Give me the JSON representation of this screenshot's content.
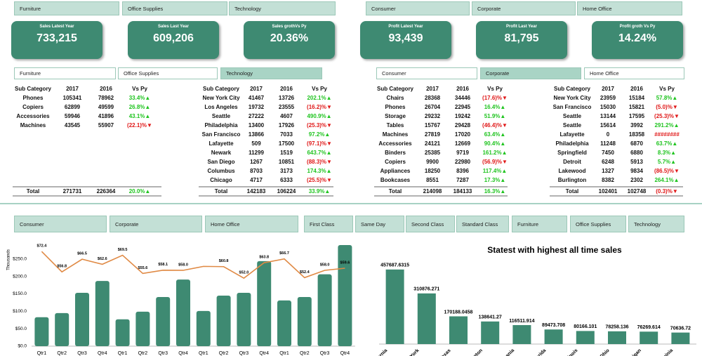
{
  "slicers_top": {
    "category": [
      "Furniture",
      "Office Supplies",
      "Technology"
    ],
    "segment": [
      "Consumer",
      "Corporate",
      "Home Office"
    ]
  },
  "kpis": [
    {
      "title": "Sales Latest Year",
      "value": "733,215"
    },
    {
      "title": "Sales Last Year",
      "value": "609,206"
    },
    {
      "title": "Sales grothVs Py",
      "value": "20.36%"
    },
    {
      "title": "Profit Latest Year",
      "value": "93,439"
    },
    {
      "title": "Profit Last Year",
      "value": "81,795"
    },
    {
      "title": "Profit groth Vs Py",
      "value": "14.24%"
    }
  ],
  "slicers_mid": {
    "category": [
      "Furniture",
      "Office Supplies",
      "Technology"
    ],
    "category_selected": 2,
    "segment": [
      "Consumer",
      "Corporate",
      "Home Office"
    ],
    "segment_selected": 1
  },
  "tables": [
    {
      "header": [
        "Sub Category",
        "2017",
        "2016",
        "Vs Py"
      ],
      "rows": [
        [
          "Phones",
          105341,
          78962,
          "33.4%▲"
        ],
        [
          "Copiers",
          62899,
          49599,
          "26.8%▲"
        ],
        [
          "Accessories",
          59946,
          41896,
          "43.1%▲"
        ],
        [
          "Machines",
          43545,
          55907,
          "(22.1)%▼"
        ]
      ],
      "total": [
        "Total",
        271731,
        226364,
        "20.0%▲"
      ]
    },
    {
      "header": [
        "Sub Category",
        "2017",
        "2016",
        "Vs Py"
      ],
      "rows": [
        [
          "New York City",
          41467,
          13726,
          "202.1%▲"
        ],
        [
          "Los Angeles",
          19732,
          23555,
          "(16.2)%▼"
        ],
        [
          "Seattle",
          27222,
          4607,
          "490.9%▲"
        ],
        [
          "Philadelphia",
          13400,
          17926,
          "(25.3)%▼"
        ],
        [
          "San Francisco",
          13866,
          7033,
          "97.2%▲"
        ],
        [
          "Lafayette",
          509,
          17500,
          "(97.1)%▼"
        ],
        [
          "Newark",
          11299,
          1519,
          "643.7%▲"
        ],
        [
          "San Diego",
          1267,
          10851,
          "(88.3)%▼"
        ],
        [
          "Columbus",
          8703,
          3173,
          "174.3%▲"
        ],
        [
          "Chicago",
          4717,
          6333,
          "(25.5)%▼"
        ]
      ],
      "total": [
        "Total",
        142183,
        106224,
        "33.9%▲"
      ]
    },
    {
      "header": [
        "Sub Category",
        "2017",
        "2016",
        "Vs Py"
      ],
      "rows": [
        [
          "Chairs",
          28368,
          34446,
          "(17.6)%▼"
        ],
        [
          "Phones",
          26704,
          22945,
          "16.4%▲"
        ],
        [
          "Storage",
          29232,
          19242,
          "51.9%▲"
        ],
        [
          "Tables",
          15767,
          29428,
          "(46.4)%▼"
        ],
        [
          "Machines",
          27819,
          17020,
          "63.4%▲"
        ],
        [
          "Accessories",
          24121,
          12669,
          "90.4%▲"
        ],
        [
          "Binders",
          25385,
          9719,
          "161.2%▲"
        ],
        [
          "Copiers",
          9900,
          22980,
          "(56.9)%▼"
        ],
        [
          "Appliances",
          18250,
          8396,
          "117.4%▲"
        ],
        [
          "Bookcases",
          8551,
          7287,
          "17.3%▲"
        ]
      ],
      "total": [
        "Total",
        214098,
        184133,
        "16.3%▲"
      ]
    },
    {
      "header": [
        "Sub Category",
        "2017",
        "2016",
        "Vs Py"
      ],
      "rows": [
        [
          "New York City",
          23959,
          15184,
          "57.8%▲"
        ],
        [
          "San Francisco",
          15030,
          15821,
          "(5.0)%▼"
        ],
        [
          "Seattle",
          13144,
          17595,
          "(25.3)%▼"
        ],
        [
          "Seattle",
          15614,
          3992,
          "291.2%▲"
        ],
        [
          "Lafayette",
          0,
          18358,
          "########"
        ],
        [
          "Philadelphia",
          11248,
          6870,
          "63.7%▲"
        ],
        [
          "Springfield",
          7450,
          6880,
          "8.3%▲"
        ],
        [
          "Detroit",
          6248,
          5913,
          "5.7%▲"
        ],
        [
          "Lakewood",
          1327,
          9834,
          "(86.5)%▼"
        ],
        [
          "Burlington",
          8382,
          2302,
          "264.1%▲"
        ]
      ],
      "total": [
        "Total",
        102401,
        102748,
        "(0.3)%▼"
      ]
    }
  ],
  "slicers_bottom": {
    "segment": [
      "Consumer",
      "Corporate",
      "Home Office"
    ],
    "ship_mode": [
      "First Class",
      "Same Day",
      "Second Class",
      "Standard Class"
    ],
    "category": [
      "Furniture",
      "Office Supplies",
      "Technology"
    ]
  },
  "chart_data": [
    {
      "type": "combo",
      "y_label": "Thousands",
      "categories": [
        "Qtr1",
        "Qtr2",
        "Qtr3",
        "Qtr4",
        "Qtr1",
        "Qtr2",
        "Qtr3",
        "Qtr4",
        "Qtr1",
        "Qtr2",
        "Qtr3",
        "Qtr4",
        "Qtr1",
        "Qtr2",
        "Qtr3",
        "Qtr4"
      ],
      "series": [
        {
          "type": "bar",
          "color": "#3e8a72",
          "values": [
            83,
            95,
            153,
            187,
            77,
            99,
            141,
            191,
            101,
            145,
            153,
            244,
            131,
            141,
            206,
            290
          ]
        },
        {
          "type": "line",
          "axis": "y2",
          "color": "#e08a45",
          "values": [
            72.4,
            56.8,
            66.5,
            62.6,
            69.5,
            55.6,
            58.1,
            58.0,
            61.0,
            60.8,
            52.0,
            63.8,
            66.7,
            52.4,
            58.0,
            59.6
          ],
          "value_labels": [
            "$72.4",
            "$56.8",
            "$66.5",
            "$62.6",
            "$69.5",
            "$55.6",
            "$58.1",
            "$58.0",
            null,
            "$60.8",
            "$52.0",
            "$63.8",
            "$66.7",
            "$52.4",
            "$58.0",
            "$59.6"
          ]
        }
      ],
      "ylim": [
        0,
        300
      ],
      "yticks": [
        {
          "value": 0,
          "label": "$0.0"
        },
        {
          "value": 50,
          "label": "$50.0"
        },
        {
          "value": 100,
          "label": "$100.0"
        },
        {
          "value": 150,
          "label": "$150.0"
        },
        {
          "value": 200,
          "label": "$200.0"
        },
        {
          "value": 250,
          "label": "$250.0"
        }
      ],
      "y2lim": [
        0,
        80
      ]
    },
    {
      "type": "bar",
      "title": "Statest with highest all time sales",
      "color": "#3e8a72",
      "categories": [
        "California",
        "New York",
        "Texas",
        "Washington",
        "Pennsylvania",
        "Florida",
        "Illinois",
        "Ohio",
        "Michigan",
        "Virginia"
      ],
      "values": [
        457687.6315,
        310876.271,
        170188.0458,
        138641.27,
        116511.914,
        89473.708,
        80166.101,
        78258.136,
        76269.614,
        70636.72
      ],
      "ylim": [
        0,
        500000
      ]
    }
  ]
}
